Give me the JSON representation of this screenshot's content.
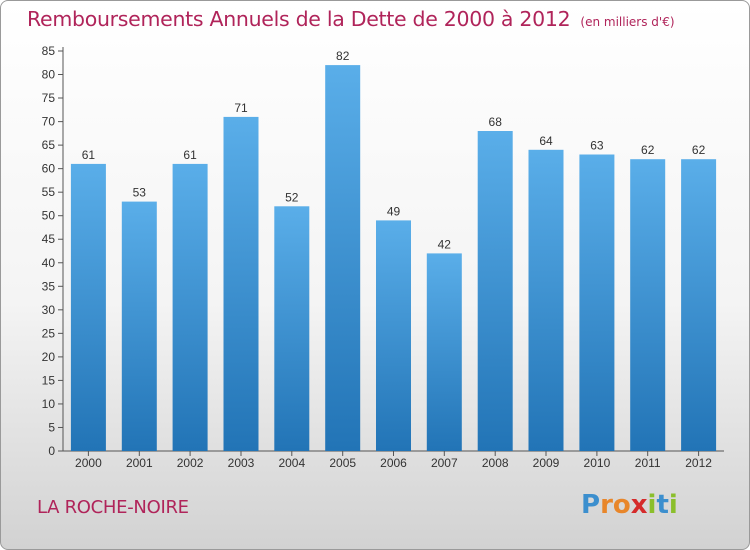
{
  "header": {
    "title": "Remboursements Annuels de la Dette de 2000 à 2012",
    "unit": "(en milliers d'€)"
  },
  "footer": {
    "commune": "LA ROCHE-NOIRE"
  },
  "logo": {
    "text": "Proxiti",
    "letters": [
      "P",
      "r",
      "o",
      "x",
      "i",
      "t",
      "i"
    ],
    "colors": [
      "#3c8fce",
      "#e8862a",
      "#e8862a",
      "#d52b2b",
      "#8bbf2c",
      "#3c8fce",
      "#8bbf2c"
    ]
  },
  "colors": {
    "bar_top": "#5aaee9",
    "bar_bottom": "#2274b6",
    "title": "#b0245a"
  },
  "chart_data": {
    "type": "bar",
    "categories": [
      "2000",
      "2001",
      "2002",
      "2003",
      "2004",
      "2005",
      "2006",
      "2007",
      "2008",
      "2009",
      "2010",
      "2011",
      "2012"
    ],
    "values": [
      61,
      53,
      61,
      71,
      52,
      82,
      49,
      42,
      68,
      64,
      63,
      62,
      62
    ],
    "title": "Remboursements Annuels de la Dette de 2000 à 2012",
    "subtitle": "(en milliers d'€)",
    "xlabel": "",
    "ylabel": "",
    "ylim": [
      0,
      85
    ],
    "yticks": [
      0,
      5,
      10,
      15,
      20,
      25,
      30,
      35,
      40,
      45,
      50,
      55,
      60,
      65,
      70,
      75,
      80,
      85
    ],
    "grid": false,
    "legend": "none"
  }
}
